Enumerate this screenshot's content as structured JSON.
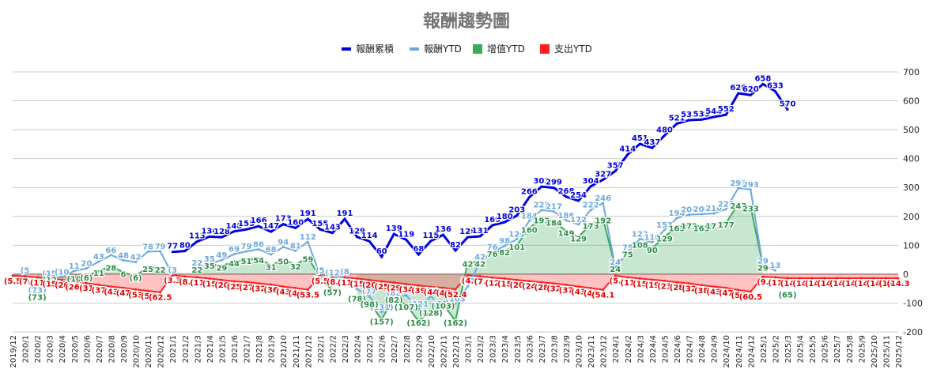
{
  "chart_data": {
    "type": "line",
    "title": "報酬趨勢圖",
    "xlabel": "",
    "ylabel": "",
    "ylim": [
      -200,
      700
    ],
    "yticks": [
      -200,
      -100,
      0,
      100,
      200,
      300,
      400,
      500,
      600,
      700
    ],
    "grid": true,
    "legend_position": "top",
    "categories": [
      "2019/12",
      "2020/1",
      "2020/2",
      "2020/3",
      "2020/4",
      "2020/5",
      "2020/6",
      "2020/7",
      "2020/8",
      "2020/9",
      "2020/10",
      "2020/11",
      "2020/12",
      "2021/1",
      "2021/2",
      "2021/3",
      "2021/4",
      "2021/5",
      "2021/6",
      "2021/7",
      "2021/8",
      "2021/9",
      "2021/10",
      "2021/11",
      "2021/12",
      "2022/1",
      "2022/2",
      "2022/3",
      "2022/4",
      "2022/5",
      "2022/6",
      "2022/7",
      "2022/8",
      "2022/9",
      "2022/10",
      "2022/11",
      "2022/12",
      "2023/1",
      "2023/2",
      "2023/3",
      "2023/4",
      "2023/5",
      "2023/6",
      "2023/7",
      "2023/8",
      "2023/9",
      "2023/10",
      "2023/11",
      "2023/12",
      "2024/1",
      "2024/2",
      "2024/3",
      "2024/4",
      "2024/5",
      "2024/6",
      "2024/7",
      "2024/8",
      "2024/9",
      "2024/10",
      "2024/11",
      "2024/12",
      "2025/1",
      "2025/2",
      "2025/3",
      "2025/4",
      "2025/5",
      "2025/6",
      "2025/7",
      "2025/8",
      "2025/9",
      "2025/10",
      "2025/11",
      "2025/12"
    ],
    "series": [
      {
        "name": "報酬累積",
        "kind": "line",
        "color": "#0000dd",
        "values": [
          null,
          null,
          null,
          null,
          null,
          null,
          null,
          null,
          null,
          null,
          null,
          null,
          null,
          77,
          80,
          113,
          130,
          128,
          148,
          155,
          166,
          147,
          173,
          160,
          191,
          155,
          143,
          191,
          129,
          114,
          60,
          139,
          119,
          68,
          115,
          136,
          82,
          128,
          131,
          169,
          180,
          203,
          266,
          303,
          299,
          268,
          254,
          304,
          327,
          357,
          414,
          451,
          437,
          480,
          521,
          533,
          535,
          544,
          552,
          626,
          620,
          658,
          633,
          570,
          null,
          null,
          null,
          null,
          null,
          null,
          null,
          null,
          null
        ],
        "labels": [
          "",
          "",
          "",
          "",
          "",
          "",
          "",
          "",
          "",
          "",
          "",
          "",
          "",
          "77",
          "80",
          "113",
          "130",
          "128",
          "148",
          "155",
          "166",
          "147",
          "173",
          "160",
          "191",
          "155",
          "143",
          "191",
          "129",
          "114",
          "60",
          "139",
          "119",
          "68",
          "115",
          "136",
          "82",
          "128",
          "131",
          "169",
          "180",
          "203",
          "266",
          "303",
          "299",
          "268",
          "254",
          "304",
          "327",
          "357",
          "414",
          "451",
          "437",
          "480",
          "521",
          "533",
          "535",
          "544",
          "552",
          "626",
          "620",
          "658",
          "633",
          "570",
          "",
          "",
          "",
          "",
          "",
          "",
          "",
          "",
          ""
        ]
      },
      {
        "name": "報酬YTD",
        "kind": "line",
        "color": "#6fa8dc",
        "values": [
          null,
          -5,
          -73,
          -15,
          -10,
          11,
          20,
          43,
          66,
          48,
          42,
          78,
          79,
          -3,
          null,
          22,
          35,
          49,
          69,
          79,
          86,
          68,
          94,
          81,
          112,
          -5,
          -12,
          -8,
          -52,
          -77,
          -131,
          -82,
          -73,
          -121,
          -76,
          -120,
          -103,
          -42,
          42,
          76,
          98,
          121,
          184,
          222,
          217,
          186,
          172,
          222,
          246,
          24,
          75,
          122,
          110,
          153,
          194,
          206,
          208,
          210,
          225,
          298,
          293,
          29,
          13,
          null,
          null,
          null,
          null,
          null,
          null,
          null,
          null,
          null,
          null
        ],
        "labels": [
          "",
          "(5",
          "(73)",
          "(15",
          "(10",
          "11",
          "20",
          "43",
          "66",
          "48",
          "42",
          "78",
          "79",
          "(3",
          "",
          "22",
          "35",
          "49",
          "69",
          "79",
          "86",
          "68",
          "94",
          "81",
          "112",
          "(5",
          "(12",
          "(8",
          "(52",
          "(77",
          "(131)",
          "(82",
          "(73)",
          "(121",
          "(76",
          "(120",
          "(103",
          "(42",
          "42",
          "76",
          "98",
          "121",
          "184",
          "222",
          "217",
          "186",
          "172",
          "222",
          "246",
          "24",
          "75",
          "122",
          "110",
          "153",
          "194",
          "206",
          "208",
          "210",
          "225",
          "298",
          "293",
          "29",
          "13",
          "",
          "",
          "",
          "",
          "",
          "",
          "",
          "",
          "",
          ""
        ]
      },
      {
        "name": "增值YTD",
        "kind": "area",
        "color": "#3aaa5c",
        "values": [
          null,
          null,
          -73,
          -12,
          -26,
          -10,
          -6,
          11,
          28,
          6,
          -6,
          25,
          22,
          null,
          null,
          22,
          35,
          29,
          44,
          51,
          54,
          31,
          50,
          32,
          59,
          -12,
          -57,
          null,
          -78,
          -98,
          -157,
          -82,
          -107,
          -162,
          -128,
          -103,
          -162,
          42,
          42,
          76,
          82,
          101,
          160,
          192,
          184,
          149,
          129,
          173,
          192,
          24,
          75,
          108,
          90,
          129,
          165,
          173,
          165,
          173,
          177,
          243,
          233,
          29,
          null,
          -65,
          null,
          null,
          null,
          null,
          null,
          null,
          null,
          null,
          null
        ],
        "labels": [
          "",
          "",
          "(73)",
          "(12",
          "(26)",
          "(10",
          "(6)",
          "11",
          "28",
          "6",
          "(6)",
          "25",
          "22",
          "",
          "",
          "22",
          "35",
          "29",
          "44",
          "51",
          "54",
          "31",
          "50",
          "32",
          "59",
          "(12",
          "(57)",
          "",
          "(78)",
          "(98)",
          "(157)",
          "(82)",
          "(107)",
          "(162)",
          "(128)",
          "(103)",
          "(162)",
          "42",
          "42",
          "76",
          "82",
          "101",
          "160",
          "192",
          "184",
          "149",
          "129",
          "173",
          "192",
          "24",
          "75",
          "108",
          "90",
          "129",
          "165",
          "173",
          "165",
          "173",
          "177",
          "243",
          "233",
          "29",
          "",
          "(65)",
          "",
          "",
          "",
          "",
          "",
          "",
          "",
          "",
          ""
        ]
      },
      {
        "name": "支出YTD",
        "kind": "area",
        "color": "#ff1f1f",
        "values": [
          -5.5,
          -7,
          -11,
          -15,
          -20,
          -26,
          -31,
          -37,
          -43,
          -47,
          -53,
          -58,
          -62.5,
          -3.3,
          -8,
          -11,
          -15,
          -20,
          -25,
          -27,
          -32,
          -36,
          -43,
          -48,
          -53.5,
          -5.5,
          -8,
          -11,
          -15,
          -20,
          -25,
          -29,
          -34,
          -39,
          -44,
          -47,
          -52.4,
          -4,
          -7,
          -12,
          -15,
          -20,
          -24,
          -28,
          -32,
          -37,
          -43,
          -48,
          -54.1,
          -5,
          -11,
          -15,
          -19,
          -23,
          -28,
          -32,
          -38,
          -43,
          -47,
          -55,
          -60.5,
          -9,
          -11,
          -14,
          -14,
          -14,
          -14,
          -14,
          -14,
          -14,
          -14,
          -14,
          -14.3
        ],
        "labels": [
          "(5.5",
          "(7.",
          "(11",
          "(15",
          "(20",
          "(26)",
          "(31",
          "(37",
          "(43",
          "(47",
          "(53",
          "(58",
          "(62.5",
          "(3.3",
          "(8.",
          "(11",
          "(15",
          "(20",
          "(25",
          "(27",
          "(32",
          "(36",
          "(43",
          "(48",
          "(53.5",
          "(5.5",
          "(8.",
          "(11",
          "(15",
          "(20",
          "(25",
          "(29",
          "(34",
          "(39",
          "(44",
          "(47",
          "(52.4",
          "(4.",
          "(7.",
          "(12",
          "(15",
          "(20",
          "(24",
          "(28",
          "(32",
          "(37",
          "(43",
          "(48",
          "(54.1",
          "(5.",
          "(11",
          "(15",
          "(19",
          "(23",
          "(28",
          "(32",
          "(38",
          "(43",
          "(47",
          "(55",
          "(60.5",
          "(9.",
          "(11",
          "(14",
          "(14",
          "(14",
          "(14",
          "(14",
          "(14",
          "(14",
          "(14",
          "(14",
          "(14.3"
        ]
      }
    ]
  }
}
